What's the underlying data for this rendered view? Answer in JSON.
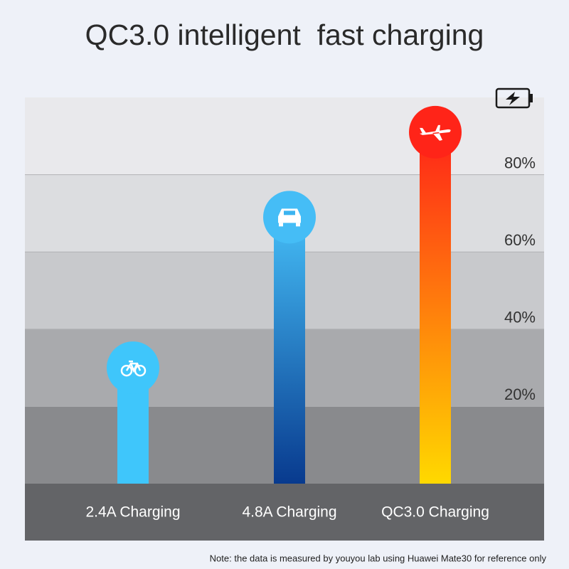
{
  "chart_data": {
    "type": "bar",
    "title": "QC3.0 intelligent  fast charging",
    "categories": [
      "2.4A Charging",
      "4.8A Charging",
      "QC3.0 Charging"
    ],
    "values": [
      30,
      69,
      91
    ],
    "colors": [
      [
        "#3fc6fb",
        "#3fc6fb"
      ],
      [
        "#45bdf6",
        "#083a8e"
      ],
      [
        "#ff2418",
        "#ffd900"
      ]
    ],
    "ylim": [
      0,
      100
    ],
    "yticks": [
      {
        "value": 20,
        "label": "20%"
      },
      {
        "value": 40,
        "label": "40%"
      },
      {
        "value": 60,
        "label": "60%"
      },
      {
        "value": 80,
        "label": "80%"
      }
    ],
    "grid": true,
    "note": "Note: the data is measured by youyou lab using Huawei Mate30 for reference only"
  }
}
